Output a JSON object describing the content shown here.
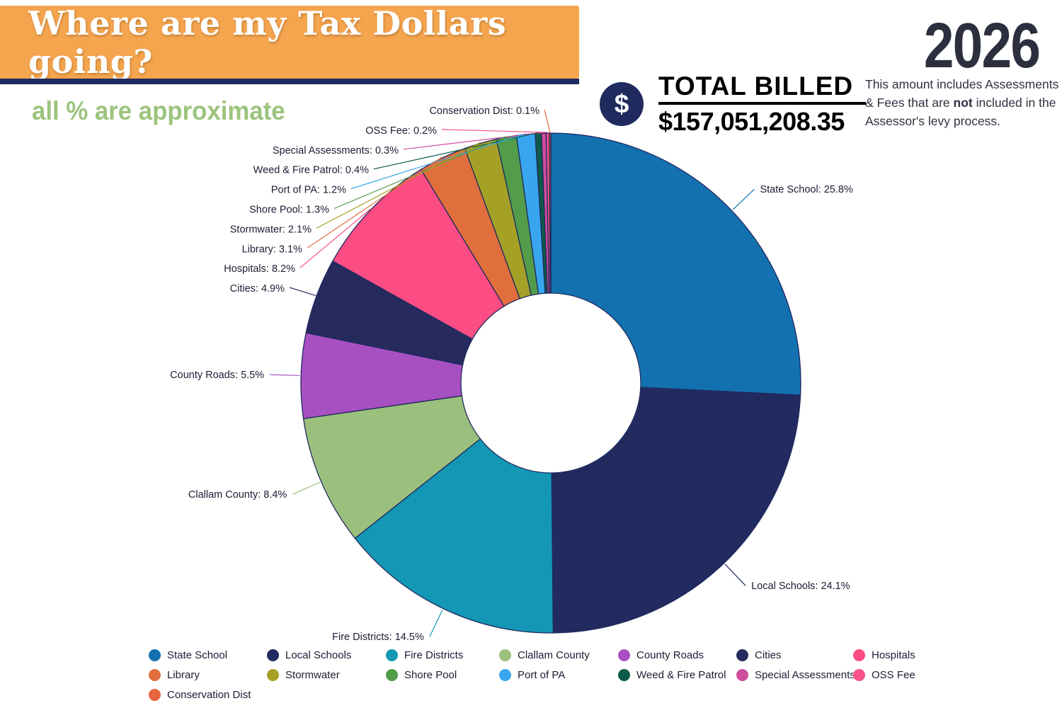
{
  "header": {
    "title": "Where are my Tax Dollars going?",
    "year": "2026"
  },
  "subtitle": "all % are approximate",
  "total": {
    "currency_icon": "$",
    "label": "TOTAL BILLED",
    "amount": "$157,051,208.35",
    "note_pre": "This amount includes Assessments & Fees that are ",
    "note_bold": "not",
    "note_post": " included in the Assessor's levy process."
  },
  "colors": {
    "banner_orange": "#F6A54F",
    "navy": "#1F2A5E",
    "year_text": "#2B2F3E",
    "subtitle_green": "#9CC47D"
  },
  "chart_data": {
    "type": "pie",
    "donut": true,
    "unit": "%",
    "label_format": "{name}: {pct}%",
    "legend_position": "bottom",
    "stroke": "#1F2A5E",
    "slices": [
      {
        "name": "State School",
        "pct": 25.8,
        "color": "#1371B0"
      },
      {
        "name": "Local Schools",
        "pct": 24.1,
        "color": "#222B60"
      },
      {
        "name": "Fire Districts",
        "pct": 14.5,
        "color": "#1397B5"
      },
      {
        "name": "Clallam County",
        "pct": 8.4,
        "color": "#9BC07D"
      },
      {
        "name": "County Roads",
        "pct": 5.5,
        "color": "#A750C2"
      },
      {
        "name": "Cities",
        "pct": 4.9,
        "color": "#262A5C"
      },
      {
        "name": "Hospitals",
        "pct": 8.2,
        "color": "#FB4D84"
      },
      {
        "name": "Library",
        "pct": 3.1,
        "color": "#E16F3D"
      },
      {
        "name": "Stormwater",
        "pct": 2.1,
        "color": "#A4A126"
      },
      {
        "name": "Shore Pool",
        "pct": 1.3,
        "color": "#529C4A"
      },
      {
        "name": "Port of PA",
        "pct": 1.2,
        "color": "#38A6EE"
      },
      {
        "name": "Weed & Fire Patrol",
        "pct": 0.4,
        "color": "#0C5A49"
      },
      {
        "name": "Special Assessments",
        "pct": 0.3,
        "color": "#CE4D9C"
      },
      {
        "name": "OSS Fee",
        "pct": 0.2,
        "color": "#FB5289"
      },
      {
        "name": "Conservation Dist",
        "pct": 0.1,
        "color": "#E4653E"
      }
    ]
  }
}
